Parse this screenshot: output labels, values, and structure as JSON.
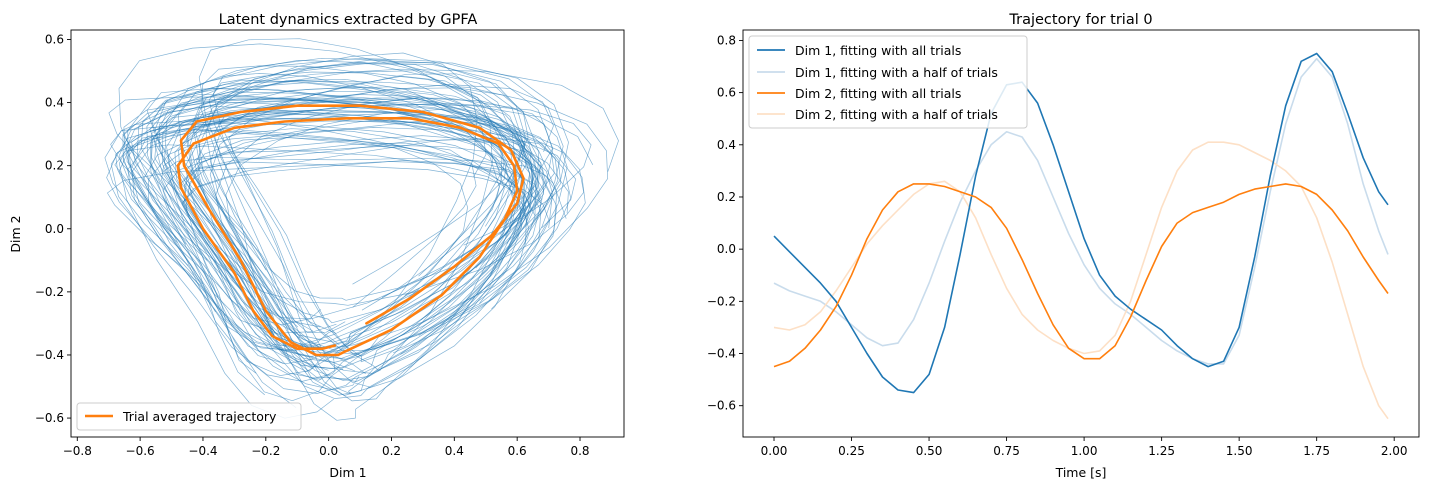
{
  "colors": {
    "blue": "#1f77b4",
    "orange": "#ff7f0e",
    "light_blue": "#c9dcec",
    "light_orange": "#fde0c6"
  },
  "chart_data": [
    {
      "type": "line",
      "title": "Latent dynamics extracted by GPFA",
      "xlabel": "Dim 1",
      "ylabel": "Dim 2",
      "xlim": [
        -0.82,
        0.94
      ],
      "ylim": [
        -0.66,
        0.63
      ],
      "xticks": [
        -0.8,
        -0.6,
        -0.4,
        -0.2,
        0.0,
        0.2,
        0.4,
        0.6,
        0.8
      ],
      "xtick_labels": [
        "−0.8",
        "−0.6",
        "−0.4",
        "−0.2",
        "0.0",
        "0.2",
        "0.4",
        "0.6",
        "0.8"
      ],
      "yticks": [
        -0.6,
        -0.4,
        -0.2,
        0.0,
        0.2,
        0.4,
        0.6
      ],
      "ytick_labels": [
        "−0.6",
        "−0.4",
        "−0.2",
        "0.0",
        "0.2",
        "0.4",
        "0.6"
      ],
      "legend": {
        "location": "lower-left",
        "entries": [
          "Trial averaged trajectory"
        ]
      },
      "background_trials": {
        "count": 40,
        "description": "single-trial latent trajectories, thin light-blue lines"
      },
      "series": [
        {
          "name": "Trial averaged trajectory",
          "x": [
            0.12,
            0.26,
            0.4,
            0.52,
            0.6,
            0.62,
            0.58,
            0.48,
            0.3,
            0.1,
            -0.1,
            -0.28,
            -0.42,
            -0.47,
            -0.46,
            -0.38,
            -0.28,
            -0.2,
            -0.12,
            -0.04,
            0.03,
            0.05,
            0.2,
            0.36,
            0.48,
            0.56,
            0.6,
            0.59,
            0.54,
            0.42,
            0.26,
            0.06,
            -0.14,
            -0.3,
            -0.43,
            -0.48,
            -0.47,
            -0.4,
            -0.3,
            -0.24,
            -0.18,
            -0.1,
            -0.02,
            0.02
          ],
          "y": [
            -0.3,
            -0.22,
            -0.12,
            -0.02,
            0.08,
            0.16,
            0.25,
            0.32,
            0.37,
            0.39,
            0.39,
            0.37,
            0.34,
            0.28,
            0.2,
            0.06,
            -0.1,
            -0.26,
            -0.36,
            -0.4,
            -0.4,
            -0.39,
            -0.32,
            -0.21,
            -0.09,
            0.03,
            0.12,
            0.2,
            0.27,
            0.32,
            0.35,
            0.35,
            0.34,
            0.32,
            0.27,
            0.2,
            0.13,
            0.0,
            -0.14,
            -0.26,
            -0.34,
            -0.38,
            -0.38,
            -0.37
          ]
        }
      ]
    },
    {
      "type": "line",
      "title": "Trajectory for trial 0",
      "xlabel": "Time [s]",
      "ylabel": "",
      "xlim": [
        -0.1,
        2.08
      ],
      "ylim": [
        -0.72,
        0.84
      ],
      "xticks": [
        0.0,
        0.25,
        0.5,
        0.75,
        1.0,
        1.25,
        1.5,
        1.75,
        2.0
      ],
      "xtick_labels": [
        "0.00",
        "0.25",
        "0.50",
        "0.75",
        "1.00",
        "1.25",
        "1.50",
        "1.75",
        "2.00"
      ],
      "yticks": [
        -0.6,
        -0.4,
        -0.2,
        0.0,
        0.2,
        0.4,
        0.6,
        0.8
      ],
      "ytick_labels": [
        "−0.6",
        "−0.4",
        "−0.2",
        "0.0",
        "0.2",
        "0.4",
        "0.6",
        "0.8"
      ],
      "legend": {
        "location": "upper-left",
        "entries": [
          "Dim 1, fitting with all trials",
          "Dim 1, fitting with a half of trials",
          "Dim 2, fitting with all trials",
          "Dim 2, fitting with a half of trials"
        ]
      },
      "series": [
        {
          "name": "Dim 1, fitting with all trials",
          "color_key": "blue",
          "x": [
            0.0,
            0.05,
            0.1,
            0.15,
            0.2,
            0.25,
            0.3,
            0.35,
            0.4,
            0.45,
            0.5,
            0.55,
            0.6,
            0.65,
            0.7,
            0.75,
            0.8,
            0.85,
            0.9,
            0.95,
            1.0,
            1.05,
            1.1,
            1.15,
            1.2,
            1.25,
            1.3,
            1.35,
            1.4,
            1.45,
            1.5,
            1.55,
            1.6,
            1.65,
            1.7,
            1.75,
            1.8,
            1.85,
            1.9,
            1.95,
            1.98
          ],
          "y": [
            0.05,
            -0.01,
            -0.07,
            -0.13,
            -0.2,
            -0.3,
            -0.4,
            -0.49,
            -0.54,
            -0.55,
            -0.48,
            -0.3,
            -0.02,
            0.28,
            0.52,
            0.63,
            0.64,
            0.56,
            0.4,
            0.22,
            0.04,
            -0.1,
            -0.18,
            -0.23,
            -0.27,
            -0.31,
            -0.37,
            -0.42,
            -0.45,
            -0.43,
            -0.3,
            -0.03,
            0.28,
            0.55,
            0.72,
            0.75,
            0.68,
            0.52,
            0.35,
            0.22,
            0.17
          ]
        },
        {
          "name": "Dim 1, fitting with a half of trials",
          "color_key": "light_blue",
          "x": [
            0.0,
            0.05,
            0.1,
            0.15,
            0.2,
            0.25,
            0.3,
            0.35,
            0.4,
            0.45,
            0.5,
            0.55,
            0.6,
            0.65,
            0.7,
            0.75,
            0.8,
            0.85,
            0.9,
            0.95,
            1.0,
            1.05,
            1.1,
            1.15,
            1.2,
            1.25,
            1.3,
            1.35,
            1.4,
            1.45,
            1.5,
            1.55,
            1.6,
            1.65,
            1.7,
            1.75,
            1.8,
            1.85,
            1.9,
            1.95,
            1.98
          ],
          "y": [
            -0.13,
            -0.16,
            -0.18,
            -0.2,
            -0.24,
            -0.29,
            -0.34,
            -0.37,
            -0.36,
            -0.27,
            -0.13,
            0.03,
            0.18,
            0.3,
            0.4,
            0.45,
            0.43,
            0.34,
            0.2,
            0.06,
            -0.06,
            -0.15,
            -0.21,
            -0.25,
            -0.3,
            -0.35,
            -0.39,
            -0.42,
            -0.44,
            -0.44,
            -0.33,
            -0.07,
            0.22,
            0.48,
            0.66,
            0.73,
            0.66,
            0.48,
            0.25,
            0.07,
            -0.02
          ]
        },
        {
          "name": "Dim 2, fitting with all trials",
          "color_key": "orange",
          "x": [
            0.0,
            0.05,
            0.1,
            0.15,
            0.2,
            0.25,
            0.3,
            0.35,
            0.4,
            0.45,
            0.5,
            0.55,
            0.6,
            0.65,
            0.7,
            0.75,
            0.8,
            0.85,
            0.9,
            0.95,
            1.0,
            1.05,
            1.1,
            1.15,
            1.2,
            1.25,
            1.3,
            1.35,
            1.4,
            1.45,
            1.5,
            1.55,
            1.6,
            1.65,
            1.7,
            1.75,
            1.8,
            1.85,
            1.9,
            1.95,
            1.98
          ],
          "y": [
            -0.45,
            -0.43,
            -0.38,
            -0.31,
            -0.22,
            -0.1,
            0.04,
            0.15,
            0.22,
            0.25,
            0.25,
            0.24,
            0.22,
            0.2,
            0.16,
            0.08,
            -0.04,
            -0.17,
            -0.29,
            -0.38,
            -0.42,
            -0.42,
            -0.37,
            -0.26,
            -0.12,
            0.01,
            0.1,
            0.14,
            0.16,
            0.18,
            0.21,
            0.23,
            0.24,
            0.25,
            0.24,
            0.21,
            0.15,
            0.07,
            -0.03,
            -0.12,
            -0.17
          ]
        },
        {
          "name": "Dim 2, fitting with a half of trials",
          "color_key": "light_orange",
          "x": [
            0.0,
            0.05,
            0.1,
            0.15,
            0.2,
            0.25,
            0.3,
            0.35,
            0.4,
            0.45,
            0.5,
            0.55,
            0.6,
            0.65,
            0.7,
            0.75,
            0.8,
            0.85,
            0.9,
            0.95,
            1.0,
            1.05,
            1.1,
            1.15,
            1.2,
            1.25,
            1.3,
            1.35,
            1.4,
            1.45,
            1.5,
            1.55,
            1.6,
            1.65,
            1.7,
            1.75,
            1.8,
            1.85,
            1.9,
            1.95,
            1.98
          ],
          "y": [
            -0.3,
            -0.31,
            -0.29,
            -0.24,
            -0.16,
            -0.07,
            0.02,
            0.09,
            0.15,
            0.21,
            0.25,
            0.26,
            0.22,
            0.12,
            -0.02,
            -0.15,
            -0.25,
            -0.31,
            -0.35,
            -0.38,
            -0.4,
            -0.39,
            -0.33,
            -0.2,
            -0.02,
            0.16,
            0.3,
            0.38,
            0.41,
            0.41,
            0.4,
            0.37,
            0.34,
            0.3,
            0.24,
            0.12,
            -0.05,
            -0.25,
            -0.45,
            -0.6,
            -0.65
          ]
        }
      ]
    }
  ]
}
